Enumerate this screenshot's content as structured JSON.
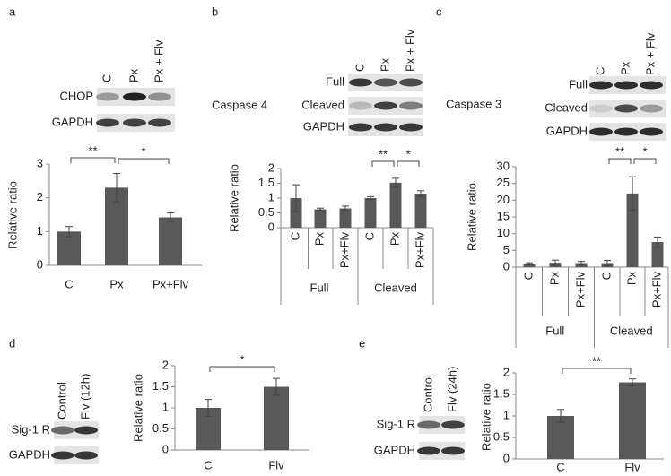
{
  "blots": [
    {
      "lanes": [
        "C",
        "Px",
        "Px + Flv"
      ],
      "rows": [
        "CHOP",
        "GAPDH"
      ]
    },
    {
      "title": "Caspase 4",
      "lanes": [
        "C",
        "Px",
        "Px + Flv"
      ],
      "rows": [
        "Full",
        "Cleaved",
        "GAPDH"
      ]
    },
    {
      "title": "Caspase 3",
      "lanes": [
        "C",
        "Px",
        "Px + Flv"
      ],
      "rows": [
        "Full",
        "Cleaved",
        "GAPDH"
      ]
    },
    {
      "lanes": [
        "Control",
        "Flv (12h)"
      ],
      "rows": [
        "Sig-1 R",
        "GAPDH"
      ]
    },
    {
      "lanes": [
        "Control",
        "Flv (24h)"
      ],
      "rows": [
        "Sig-1 R",
        "GAPDH"
      ]
    }
  ],
  "chart_data": [
    {
      "type": "bar",
      "panel": "a",
      "y_label": "Relative ratio",
      "color": "#595959",
      "categories": [
        "C",
        "Px",
        "Px+Flv"
      ],
      "values": [
        1.0,
        2.3,
        1.42
      ],
      "errors": [
        0.15,
        0.42,
        0.13
      ],
      "ylim": [
        0,
        3
      ],
      "yticks": [
        0,
        1,
        2,
        3
      ],
      "annotations": [
        {
          "text": "**",
          "between": [
            0,
            1
          ]
        },
        {
          "text": "*",
          "between": [
            1,
            2
          ]
        }
      ]
    },
    {
      "type": "bar",
      "panel": "b",
      "y_label": "Relative ratio",
      "color": "#595959",
      "categories": [
        "C",
        "Px",
        "Px+Flv",
        "C",
        "Px",
        "Px+Flv"
      ],
      "values": [
        1.0,
        0.62,
        0.65,
        1.0,
        1.52,
        1.15
      ],
      "errors": [
        0.45,
        0.04,
        0.08,
        0.05,
        0.15,
        0.1
      ],
      "groups": [
        {
          "name": "Full",
          "span": 3
        },
        {
          "name": "Cleaved",
          "span": 3
        }
      ],
      "ylim": [
        0,
        2
      ],
      "yticks": [
        0,
        0.5,
        1,
        1.5,
        2
      ],
      "annotations": [
        {
          "text": "**",
          "between": [
            3,
            4
          ]
        },
        {
          "text": "*",
          "between": [
            4,
            5
          ]
        }
      ]
    },
    {
      "type": "bar",
      "panel": "c",
      "y_label": "Relative ratio",
      "color": "#595959",
      "categories": [
        "C",
        "Px",
        "Px+Flv",
        "C",
        "Px",
        "Px+Flv"
      ],
      "values": [
        1.0,
        1.3,
        1.2,
        1.2,
        22,
        7.5
      ],
      "errors": [
        0.3,
        0.8,
        0.5,
        0.8,
        5,
        1.5
      ],
      "groups": [
        {
          "name": "Full",
          "span": 3
        },
        {
          "name": "Cleaved",
          "span": 3
        }
      ],
      "ylim": [
        0,
        30
      ],
      "yticks": [
        0,
        5,
        10,
        15,
        20,
        25,
        30
      ],
      "annotations": [
        {
          "text": "**",
          "between": [
            3,
            4
          ]
        },
        {
          "text": "*",
          "between": [
            4,
            5
          ]
        }
      ]
    },
    {
      "type": "bar",
      "panel": "d",
      "y_label": "Relative ratio",
      "color": "#595959",
      "categories": [
        "C",
        "Flv"
      ],
      "values": [
        1.0,
        1.5
      ],
      "errors": [
        0.2,
        0.2
      ],
      "ylim": [
        0,
        2
      ],
      "yticks": [
        0,
        0.5,
        1,
        1.5,
        2
      ],
      "annotations": [
        {
          "text": "*",
          "between": [
            0,
            1
          ]
        }
      ]
    },
    {
      "type": "bar",
      "panel": "e",
      "y_label": "Relative ratio",
      "color": "#595959",
      "categories": [
        "C",
        "Flv"
      ],
      "values": [
        1.0,
        1.78
      ],
      "errors": [
        0.15,
        0.08
      ],
      "ylim": [
        0,
        2
      ],
      "yticks": [
        0,
        0.5,
        1,
        1.5,
        2
      ],
      "annotations": [
        {
          "text": "**",
          "between": [
            0,
            1
          ]
        }
      ]
    }
  ]
}
